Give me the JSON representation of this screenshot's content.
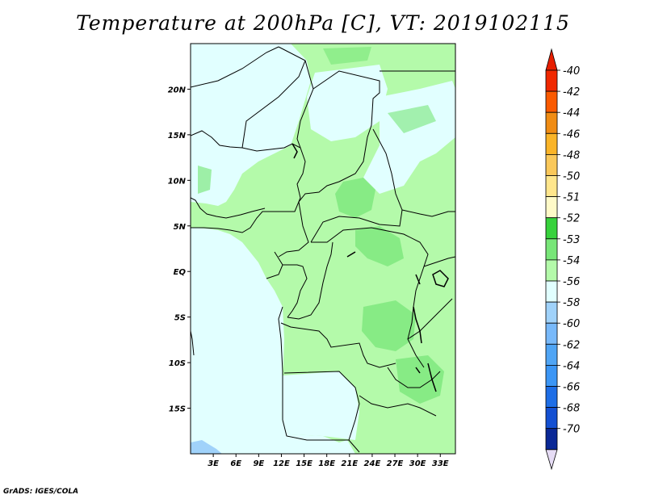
{
  "title": "Temperature at 200hPa [C], VT: 2019102115",
  "credit": "GrADS: IGES/COLA",
  "map": {
    "region": "Central Africa",
    "lon_range": [
      0,
      35
    ],
    "lat_range": [
      -20,
      25
    ],
    "lat_ticks": [
      "20N",
      "15N",
      "10N",
      "5N",
      "EQ",
      "5S",
      "10S",
      "15S"
    ],
    "lon_ticks": [
      "3E",
      "6E",
      "9E",
      "12E",
      "15E",
      "18E",
      "21E",
      "24E",
      "27E",
      "30E",
      "33E"
    ],
    "ocean_color": "#e1ffff",
    "dominant_field_color": "#b4faaa"
  },
  "colorbar": {
    "levels": [
      {
        "label": "-40",
        "color": "#f02800"
      },
      {
        "label": "-42",
        "color": "#fa5a00"
      },
      {
        "label": "-44",
        "color": "#f08c14"
      },
      {
        "label": "-46",
        "color": "#fab428"
      },
      {
        "label": "-48",
        "color": "#fac85a"
      },
      {
        "label": "-50",
        "color": "#ffe68c"
      },
      {
        "label": "-51",
        "color": "#fffac8"
      },
      {
        "label": "-52",
        "color": "#37d23c"
      },
      {
        "label": "-53",
        "color": "#78e678"
      },
      {
        "label": "-54",
        "color": "#b4faaa"
      },
      {
        "label": "-56",
        "color": "#e1ffff"
      },
      {
        "label": "-58",
        "color": "#a0d2fa"
      },
      {
        "label": "-60",
        "color": "#78b9fa"
      },
      {
        "label": "-62",
        "color": "#50a5f5"
      },
      {
        "label": "-64",
        "color": "#3c96f5"
      },
      {
        "label": "-66",
        "color": "#1e6ee6"
      },
      {
        "label": "-68",
        "color": "#1450d2"
      },
      {
        "label": "-70",
        "color": "#0a2896"
      }
    ],
    "top_arrow_color": "#e61e00",
    "bottom_arrow_color": "#e6dcf5"
  }
}
